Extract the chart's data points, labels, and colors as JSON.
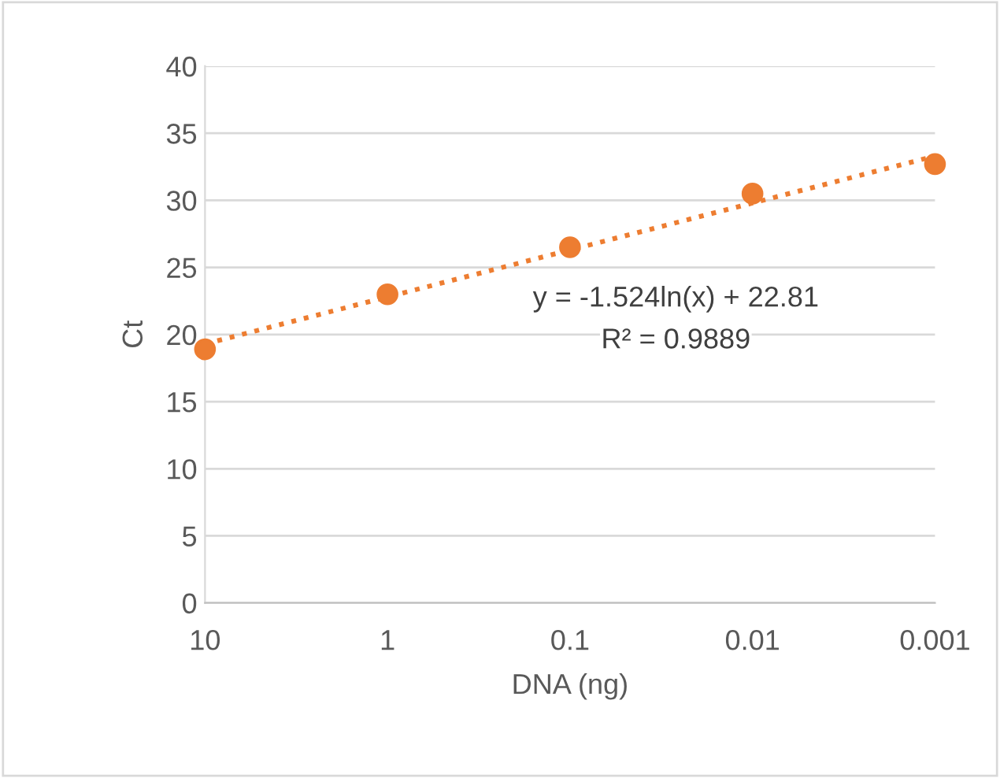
{
  "chart_data": {
    "type": "scatter",
    "xlabel": "DNA (ng)",
    "ylabel": "Ct",
    "log": "x",
    "xlim": [
      10,
      0.001
    ],
    "xticks": [
      10,
      1,
      0.1,
      0.01,
      0.001
    ],
    "ylim": [
      0,
      40
    ],
    "yticks": [
      0,
      5,
      10,
      15,
      20,
      25,
      30,
      35,
      40
    ],
    "grid": "y",
    "legend": false,
    "series": [
      {
        "color": "#ed7d31",
        "marker": "circle",
        "x": [
          10,
          1,
          0.1,
          0.01,
          0.001
        ],
        "values": [
          18.9,
          23.0,
          26.5,
          30.5,
          32.7
        ]
      },
      {
        "type": "line",
        "color": "#ed7d31",
        "marker": "none",
        "line_style": "dotted",
        "x": [
          10,
          0.001
        ],
        "values": [
          19.3,
          33.3
        ]
      }
    ],
    "annotations": [
      "y = -1.524ln(x) + 22.81",
      "R² = 0.9889"
    ]
  }
}
